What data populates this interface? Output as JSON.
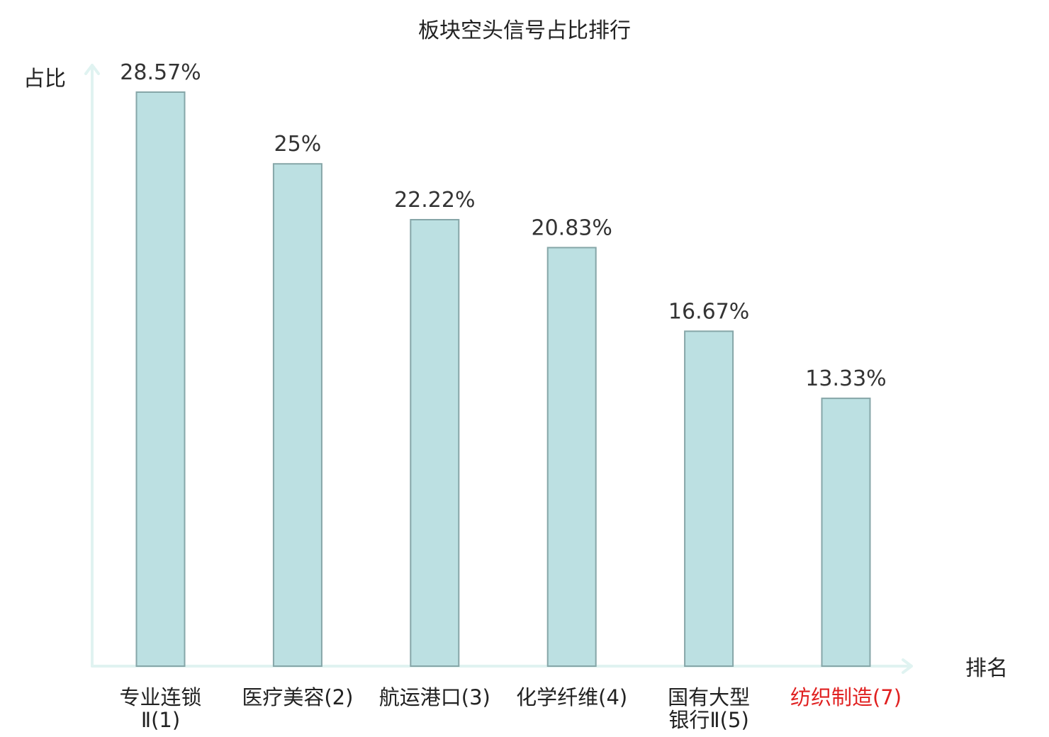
{
  "chart_data": {
    "type": "bar",
    "title": "板块空头信号占比排行",
    "xlabel": "排名",
    "ylabel": "占比",
    "ylim": [
      0,
      30
    ],
    "grid": false,
    "categories": [
      [
        "专业连锁",
        "Ⅱ(1)"
      ],
      [
        "医疗美容(2)"
      ],
      [
        "航运港口(3)"
      ],
      [
        "化学纤维(4)"
      ],
      [
        "国有大型",
        "银行Ⅱ(5)"
      ],
      [
        "纺织制造(7)"
      ]
    ],
    "values": [
      28.57,
      25,
      22.22,
      20.83,
      16.67,
      13.33
    ],
    "value_labels": [
      "28.57%",
      "25%",
      "22.22%",
      "20.83%",
      "16.67%",
      "13.33%"
    ],
    "highlighted_category_index": 5,
    "colors": {
      "bar_fill": "#bce0e2",
      "bar_stroke": "#86a6a8",
      "axis": "#e0f3f1",
      "text": "#222222",
      "highlight_text": "#e02020"
    }
  }
}
